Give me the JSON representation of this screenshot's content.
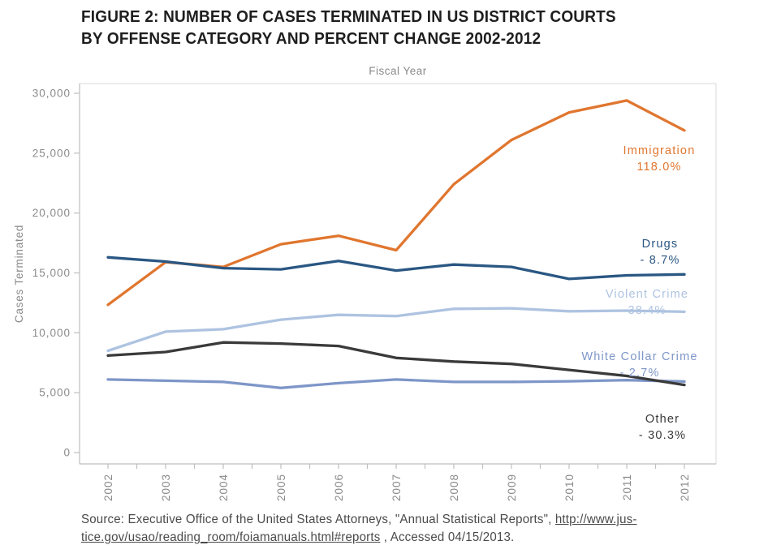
{
  "figure": {
    "title_line1": "FIGURE 2: NUMBER OF CASES TERMINATED IN US DISTRICT COURTS",
    "title_line2": "BY OFFENSE CATEGORY AND PERCENT CHANGE 2002-2012"
  },
  "chart_data": {
    "type": "line",
    "top_title": "Fiscal Year",
    "ylabel": "Cases Terminated",
    "x": [
      2002,
      2003,
      2004,
      2005,
      2006,
      2007,
      2008,
      2009,
      2010,
      2011,
      2012
    ],
    "x_labels": [
      "2002",
      "2003",
      "2004",
      "2005",
      "2006",
      "2007",
      "2008",
      "2009",
      "2010",
      "2011",
      "2012"
    ],
    "ylim": [
      0,
      30000
    ],
    "yticks": [
      0,
      5000,
      10000,
      15000,
      20000,
      25000,
      30000
    ],
    "ytick_labels": [
      "0",
      "5,000",
      "10,000",
      "15,000",
      "20,000",
      "25,000",
      "30,000"
    ],
    "grid": false,
    "legend_position": "end-of-line-annotations",
    "axis_color": "#bfbfbf",
    "border_color": "#d9d9d9",
    "tick_label_color": "#8a8a8a",
    "series": [
      {
        "name": "Violent Crime",
        "pct_change": "38.4%",
        "color": "#AEC3E1",
        "values": [
          8500,
          10100,
          10300,
          11100,
          11500,
          11400,
          12000,
          12050,
          11800,
          11850,
          11760
        ],
        "label_pos": [
          797,
          367
        ]
      },
      {
        "name": "White Collar Crime",
        "pct_change": "- 2.7%",
        "color": "#7E96C8",
        "values": [
          6100,
          6000,
          5900,
          5400,
          5800,
          6100,
          5900,
          5900,
          5950,
          6050,
          5935
        ],
        "label_pos": [
          788,
          444
        ]
      },
      {
        "name": "Other",
        "pct_change": "- 30.3%",
        "color": "#3A3A3A",
        "values": [
          8100,
          8400,
          9200,
          9100,
          8900,
          7900,
          7600,
          7400,
          6900,
          6400,
          5650
        ],
        "label_pos": [
          816,
          521
        ]
      },
      {
        "name": "Immigration",
        "pct_change": "118.0%",
        "color": "#E0762F",
        "values": [
          12340,
          15900,
          15500,
          17400,
          18100,
          16900,
          22400,
          26100,
          28400,
          29400,
          26900
        ],
        "label_pos": [
          812,
          190
        ]
      },
      {
        "name": "Drugs",
        "pct_change": "- 8.7%",
        "color": "#2A5783",
        "values": [
          16300,
          15950,
          15400,
          15300,
          16000,
          15200,
          15700,
          15500,
          14500,
          14800,
          14880
        ],
        "label_pos": [
          813,
          305
        ]
      }
    ]
  },
  "source": {
    "prefix": "Source: Executive Office of the United States Attorneys, \"Annual Statistical Reports\", ",
    "link_line1": "http://www.jus-",
    "link_line2": "tice.gov/usao/reading_room/foiamanuals.html#reports",
    "suffix": " , Accessed 04/15/2013."
  }
}
